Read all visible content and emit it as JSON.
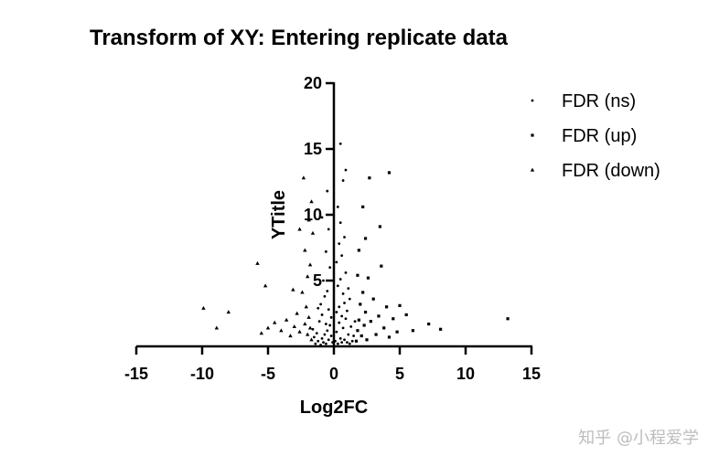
{
  "watermark": "知乎 @小程爱学",
  "chart_data": {
    "type": "scatter",
    "title": "Transform of XY: Entering replicate data",
    "xlabel": "Log2FC",
    "ylabel": "YTitle",
    "xlim": [
      -15,
      15
    ],
    "ylim": [
      0,
      20
    ],
    "xticks": [
      "-15",
      "-10",
      "-5",
      "0",
      "5",
      "10",
      "15"
    ],
    "yticks": [
      "20",
      "15",
      "10",
      "5"
    ],
    "legend": "top-right",
    "grid": false,
    "series": [
      {
        "name": "FDR (ns)",
        "marker": "dot",
        "color": "#000000",
        "points": [
          [
            -1.4,
            0.2
          ],
          [
            -1.2,
            0.4
          ],
          [
            -1.0,
            0.1
          ],
          [
            -0.9,
            0.6
          ],
          [
            -0.8,
            0.3
          ],
          [
            -0.7,
            0.9
          ],
          [
            -0.6,
            0.2
          ],
          [
            -0.5,
            1.2
          ],
          [
            -0.4,
            0.5
          ],
          [
            -0.3,
            1.6
          ],
          [
            -0.2,
            0.8
          ],
          [
            -0.1,
            0.3
          ],
          [
            0.1,
            0.4
          ],
          [
            0.2,
            1.1
          ],
          [
            0.3,
            0.2
          ],
          [
            0.4,
            1.8
          ],
          [
            0.5,
            0.6
          ],
          [
            0.6,
            0.3
          ],
          [
            0.7,
            1.4
          ],
          [
            0.8,
            0.5
          ],
          [
            0.9,
            2.1
          ],
          [
            1.0,
            0.3
          ],
          [
            1.1,
            0.9
          ],
          [
            1.2,
            0.2
          ],
          [
            1.3,
            1.5
          ],
          [
            1.4,
            0.4
          ],
          [
            -1.3,
            1.0
          ],
          [
            -1.1,
            1.9
          ],
          [
            -0.9,
            2.4
          ],
          [
            -0.6,
            1.7
          ],
          [
            -0.4,
            2.8
          ],
          [
            -0.2,
            2.2
          ],
          [
            0.2,
            2.6
          ],
          [
            0.4,
            3.0
          ],
          [
            0.6,
            2.3
          ],
          [
            0.8,
            3.3
          ],
          [
            1.0,
            2.7
          ],
          [
            1.2,
            3.6
          ],
          [
            -1.0,
            3.2
          ],
          [
            -0.7,
            3.8
          ],
          [
            -0.5,
            4.2
          ],
          [
            0.3,
            4.6
          ],
          [
            0.5,
            5.1
          ],
          [
            0.7,
            4.0
          ],
          [
            0.9,
            5.6
          ],
          [
            -0.8,
            5.0
          ],
          [
            -0.3,
            6.0
          ],
          [
            0.2,
            6.4
          ],
          [
            0.6,
            6.9
          ],
          [
            -0.6,
            7.2
          ],
          [
            0.4,
            7.8
          ],
          [
            0.8,
            8.3
          ],
          [
            -0.4,
            8.9
          ],
          [
            0.5,
            9.4
          ],
          [
            -0.9,
            9.8
          ],
          [
            0.3,
            10.6
          ],
          [
            -0.5,
            11.8
          ],
          [
            0.7,
            12.6
          ],
          [
            0.9,
            13.4
          ],
          [
            0.5,
            15.4
          ],
          [
            -1.5,
            0.7
          ],
          [
            -1.6,
            1.3
          ],
          [
            1.5,
            0.8
          ],
          [
            1.6,
            1.9
          ],
          [
            -1.2,
            2.9
          ],
          [
            1.1,
            4.4
          ]
        ]
      },
      {
        "name": "FDR (up)",
        "marker": "square",
        "color": "#000000",
        "points": [
          [
            1.7,
            0.4
          ],
          [
            1.8,
            1.2
          ],
          [
            1.9,
            2.0
          ],
          [
            2.0,
            3.2
          ],
          [
            2.1,
            0.8
          ],
          [
            2.2,
            4.1
          ],
          [
            2.3,
            1.6
          ],
          [
            2.4,
            2.6
          ],
          [
            2.5,
            0.5
          ],
          [
            2.6,
            5.2
          ],
          [
            2.8,
            1.9
          ],
          [
            3.0,
            3.6
          ],
          [
            3.2,
            0.9
          ],
          [
            3.4,
            2.3
          ],
          [
            3.6,
            6.1
          ],
          [
            3.8,
            1.4
          ],
          [
            4.0,
            3.0
          ],
          [
            4.2,
            0.7
          ],
          [
            4.5,
            2.1
          ],
          [
            4.8,
            1.1
          ],
          [
            5.0,
            3.1
          ],
          [
            5.5,
            2.4
          ],
          [
            6.0,
            1.2
          ],
          [
            7.2,
            1.7
          ],
          [
            8.1,
            1.3
          ],
          [
            13.2,
            2.1
          ],
          [
            4.2,
            13.2
          ],
          [
            3.5,
            9.1
          ],
          [
            2.7,
            12.8
          ],
          [
            2.2,
            10.6
          ],
          [
            1.9,
            7.3
          ],
          [
            2.4,
            8.2
          ],
          [
            1.8,
            5.4
          ]
        ]
      },
      {
        "name": "FDR (down)",
        "marker": "triangle",
        "color": "#000000",
        "points": [
          [
            -1.7,
            0.5
          ],
          [
            -1.8,
            1.4
          ],
          [
            -1.9,
            2.2
          ],
          [
            -2.0,
            0.9
          ],
          [
            -2.1,
            3.0
          ],
          [
            -2.2,
            1.7
          ],
          [
            -2.4,
            4.1
          ],
          [
            -2.6,
            1.1
          ],
          [
            -2.8,
            2.5
          ],
          [
            -3.0,
            1.5
          ],
          [
            -3.3,
            0.8
          ],
          [
            -3.6,
            2.0
          ],
          [
            -4.0,
            1.2
          ],
          [
            -4.5,
            1.8
          ],
          [
            -5.0,
            1.4
          ],
          [
            -5.5,
            1.0
          ],
          [
            -5.8,
            6.3
          ],
          [
            -5.2,
            4.6
          ],
          [
            -3.1,
            4.3
          ],
          [
            -2.3,
            12.8
          ],
          [
            -1.9,
            9.6
          ],
          [
            -1.6,
            8.6
          ],
          [
            -2.2,
            7.3
          ],
          [
            -1.8,
            6.2
          ],
          [
            -8.0,
            2.6
          ],
          [
            -9.9,
            2.9
          ],
          [
            -8.9,
            1.4
          ],
          [
            -1.7,
            11.0
          ],
          [
            -2.6,
            8.9
          ],
          [
            -2.0,
            5.3
          ]
        ]
      }
    ]
  }
}
